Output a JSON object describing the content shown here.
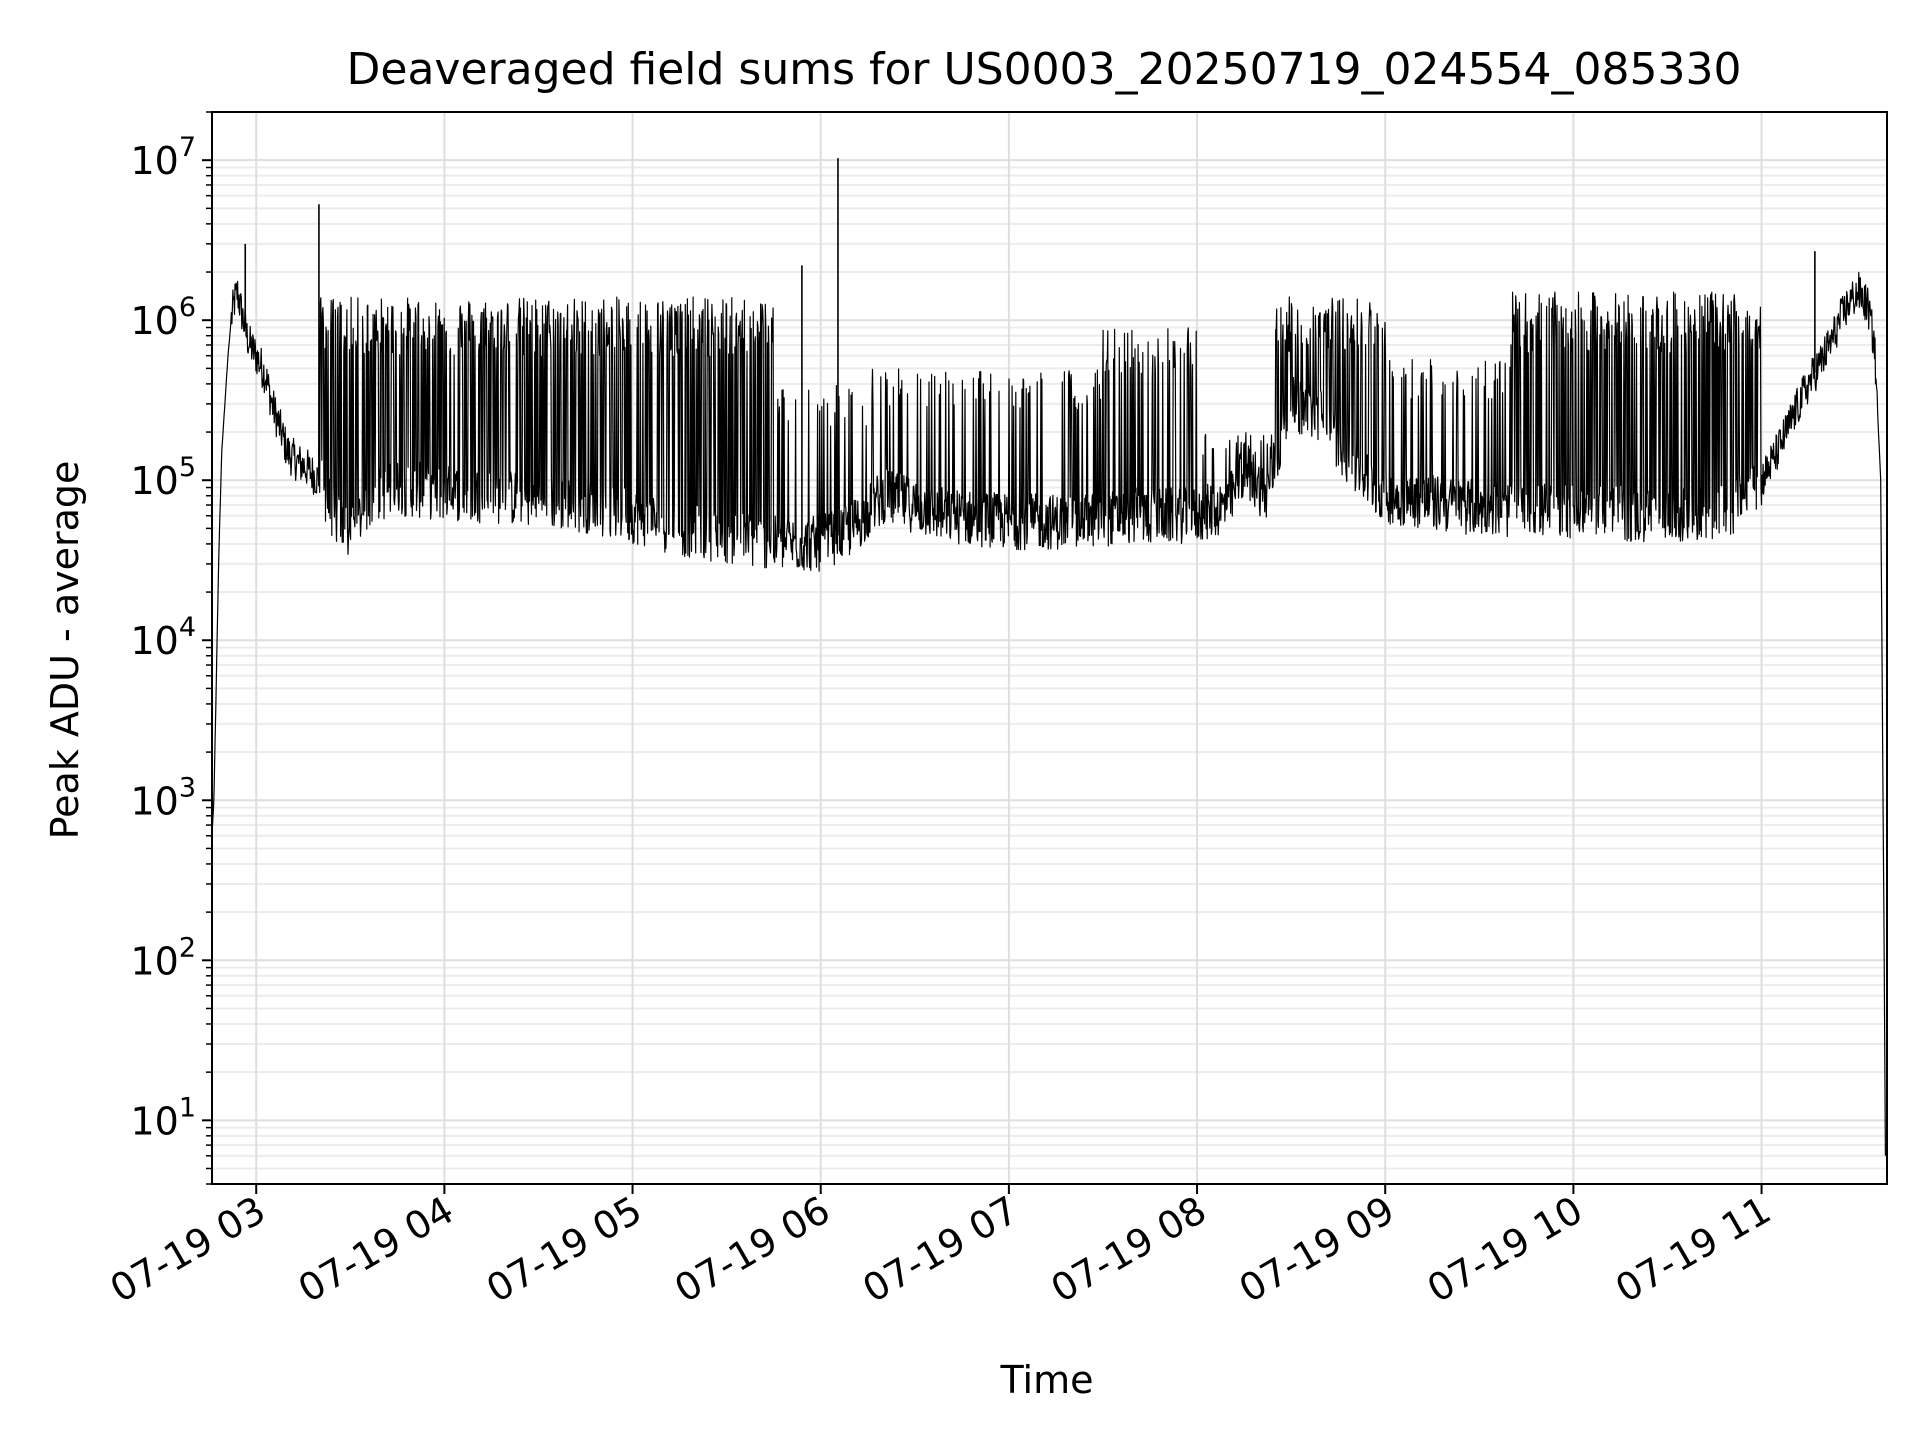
{
  "chart_data": {
    "type": "line",
    "title": "Deaveraged field sums for US0003_20250719_024554_085330",
    "xlabel": "Time",
    "ylabel": "Peak ADU - average",
    "yscale": "log",
    "ylim": [
      4,
      20000000
    ],
    "xlim": [
      "2025-07-19 02:45:54",
      "2025-07-19 11:40:00"
    ],
    "grid": true,
    "x_ticks": [
      {
        "t": "2025-07-19 03:00",
        "label": "07-19 03"
      },
      {
        "t": "2025-07-19 04:00",
        "label": "07-19 04"
      },
      {
        "t": "2025-07-19 05:00",
        "label": "07-19 05"
      },
      {
        "t": "2025-07-19 06:00",
        "label": "07-19 06"
      },
      {
        "t": "2025-07-19 07:00",
        "label": "07-19 07"
      },
      {
        "t": "2025-07-19 08:00",
        "label": "07-19 08"
      },
      {
        "t": "2025-07-19 09:00",
        "label": "07-19 09"
      },
      {
        "t": "2025-07-19 10:00",
        "label": "07-19 10"
      },
      {
        "t": "2025-07-19 11:00",
        "label": "07-19 11"
      }
    ],
    "y_ticks": [
      {
        "value": 10,
        "base": "10",
        "exp": "1"
      },
      {
        "value": 100,
        "base": "10",
        "exp": "2"
      },
      {
        "value": 1000,
        "base": "10",
        "exp": "3"
      },
      {
        "value": 10000,
        "base": "10",
        "exp": "4"
      },
      {
        "value": 100000,
        "base": "10",
        "exp": "5"
      },
      {
        "value": 1000000,
        "base": "10",
        "exp": "6"
      },
      {
        "value": 10000000,
        "base": "10",
        "exp": "7"
      }
    ],
    "series": [
      {
        "color": "#000000",
        "x": [
          "2025-07-19 02:45:54",
          "2025-07-19 02:46:30",
          "2025-07-19 02:47:00",
          "2025-07-19 02:48:00",
          "2025-07-19 02:49:00",
          "2025-07-19 02:50:00",
          "2025-07-19 02:51:00",
          "2025-07-19 02:52:00",
          "2025-07-19 02:53:00",
          "2025-07-19 02:54:00",
          "2025-07-19 02:55:00",
          "2025-07-19 02:57:00",
          "2025-07-19 02:58:00",
          "2025-07-19 03:00:00",
          "2025-07-19 03:03:00",
          "2025-07-19 03:05:00",
          "2025-07-19 03:08:00",
          "2025-07-19 03:10:00",
          "2025-07-19 03:13:00",
          "2025-07-19 03:16:00",
          "2025-07-19 03:20:00",
          "2025-07-19 03:25:00",
          "2025-07-19 03:30:00",
          "2025-07-19 03:35:00",
          "2025-07-19 03:38:00",
          "2025-07-19 03:45:00",
          "2025-07-19 03:55:00",
          "2025-07-19 04:15:00",
          "2025-07-19 04:30:00",
          "2025-07-19 04:45:00",
          "2025-07-19 05:00:00",
          "2025-07-19 05:15:00",
          "2025-07-19 05:30:00",
          "2025-07-19 05:45:00",
          "2025-07-19 06:00:00",
          "2025-07-19 06:10:00",
          "2025-07-19 06:20:00",
          "2025-07-19 06:40:00",
          "2025-07-19 07:00:00",
          "2025-07-19 07:20:00",
          "2025-07-19 07:40:00",
          "2025-07-19 08:00:00",
          "2025-07-19 08:10:00",
          "2025-07-19 08:15:00",
          "2025-07-19 08:22:00",
          "2025-07-19 08:30:00",
          "2025-07-19 08:40:00",
          "2025-07-19 08:50:00",
          "2025-07-19 09:00:00",
          "2025-07-19 09:20:00",
          "2025-07-19 09:40:00",
          "2025-07-19 10:00:00",
          "2025-07-19 10:10:00",
          "2025-07-19 10:20:00",
          "2025-07-19 10:30:00",
          "2025-07-19 10:40:00",
          "2025-07-19 10:50:00",
          "2025-07-19 11:00:00",
          "2025-07-19 11:05:00",
          "2025-07-19 11:10:00",
          "2025-07-19 11:15:00",
          "2025-07-19 11:20:00",
          "2025-07-19 11:23:00",
          "2025-07-19 11:25:00",
          "2025-07-19 11:28:00",
          "2025-07-19 11:31:00",
          "2025-07-19 11:34:00",
          "2025-07-19 11:36:00",
          "2025-07-19 11:38:00",
          "2025-07-19 11:39:00",
          "2025-07-19 11:39:30"
        ],
        "y": [
          600,
          1000,
          3000,
          30000,
          150000,
          300000,
          600000,
          1000000,
          1300000,
          1500000,
          1200000,
          800000,
          700000,
          600000,
          450000,
          300000,
          200000,
          150000,
          130000,
          120000,
          100000,
          60000,
          45000,
          70000,
          80000,
          90000,
          85000,
          80000,
          75000,
          70000,
          60000,
          50000,
          45000,
          40000,
          40000,
          50000,
          80000,
          60000,
          55000,
          55000,
          60000,
          60000,
          70000,
          120000,
          80000,
          300000,
          250000,
          120000,
          80000,
          70000,
          65000,
          65000,
          65000,
          60000,
          60000,
          60000,
          65000,
          100000,
          150000,
          250000,
          400000,
          600000,
          800000,
          1000000,
          1300000,
          1500000,
          1200000,
          700000,
          100000,
          200,
          6
        ]
      }
    ],
    "spikes": [
      {
        "t": "2025-07-19 02:56:30",
        "y": 3000000
      },
      {
        "t": "2025-07-19 03:20:00",
        "y": 5300000
      },
      {
        "t": "2025-07-19 05:54:00",
        "y": 2200000
      },
      {
        "t": "2025-07-19 06:05:30",
        "y": 10300000
      },
      {
        "t": "2025-07-19 11:17:00",
        "y": 2700000
      }
    ],
    "band_segments": [
      {
        "from": "2025-07-19 03:20:00",
        "to": "2025-07-19 05:45:00",
        "low": 45000,
        "high": 1400000,
        "density": 0.95
      },
      {
        "from": "2025-07-19 05:45:00",
        "to": "2025-07-19 06:15:00",
        "low": 35000,
        "high": 400000,
        "density": 0.2
      },
      {
        "from": "2025-07-19 06:15:00",
        "to": "2025-07-19 07:30:00",
        "low": 45000,
        "high": 500000,
        "density": 0.35
      },
      {
        "from": "2025-07-19 07:30:00",
        "to": "2025-07-19 08:00:00",
        "low": 45000,
        "high": 900000,
        "density": 0.5
      },
      {
        "from": "2025-07-19 08:00:00",
        "to": "2025-07-19 08:25:00",
        "low": 50000,
        "high": 200000,
        "density": 0.25
      },
      {
        "from": "2025-07-19 08:25:00",
        "to": "2025-07-19 09:00:00",
        "low": 60000,
        "high": 1400000,
        "density": 0.8
      },
      {
        "from": "2025-07-19 09:00:00",
        "to": "2025-07-19 09:40:00",
        "low": 50000,
        "high": 600000,
        "density": 0.35
      },
      {
        "from": "2025-07-19 09:40:00",
        "to": "2025-07-19 11:00:00",
        "low": 45000,
        "high": 1500000,
        "density": 0.85
      }
    ]
  }
}
